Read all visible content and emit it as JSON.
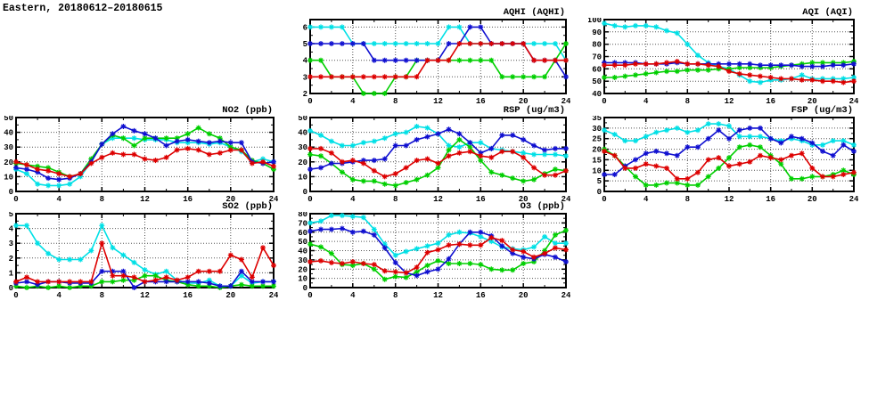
{
  "page_title": "Eastern, 20180612–20180615",
  "station": "Eastern",
  "date_range": "20180612–20180615",
  "chart_data": {
    "note": "7 hourly time-series panels, 4 unlabeled series per panel (colors cyan/green/blue/red), x = hour of day 0-24, markers = asterisks, dotted grid",
    "panels": "see charts"
  },
  "charts": [
    {
      "id": "aqhi",
      "title": "AQHI (AQHI)",
      "type": "line",
      "xlim": [
        0,
        24
      ],
      "xticks": [
        0,
        4,
        8,
        12,
        16,
        20,
        24
      ],
      "xminor": 2,
      "ylim": [
        2,
        6.45
      ],
      "yticks": [
        2,
        3,
        4,
        5,
        6
      ],
      "x_start": 0,
      "x_step": 1,
      "series": [
        {
          "name": "cyan",
          "color": "#00e0e6",
          "values": [
            6,
            6,
            6,
            6,
            5,
            5,
            5,
            5,
            5,
            5,
            5,
            5,
            5,
            6,
            6,
            5,
            5,
            5,
            5,
            5,
            5,
            5,
            5,
            5,
            4
          ]
        },
        {
          "name": "green",
          "color": "#00cf00",
          "values": [
            4,
            4,
            3,
            3,
            3,
            2,
            2,
            2,
            3,
            3,
            4,
            4,
            4,
            4,
            4,
            4,
            4,
            4,
            3,
            3,
            3,
            3,
            3,
            4,
            5
          ]
        },
        {
          "name": "blue",
          "color": "#0f0fd0",
          "values": [
            5,
            5,
            5,
            5,
            5,
            5,
            4,
            4,
            4,
            4,
            4,
            4,
            4,
            5,
            5,
            6,
            6,
            5,
            5,
            5,
            5,
            4,
            4,
            4,
            3
          ]
        },
        {
          "name": "red",
          "color": "#dd0000",
          "values": [
            3,
            3,
            3,
            3,
            3,
            3,
            3,
            3,
            3,
            3,
            3,
            4,
            4,
            4,
            5,
            5,
            5,
            5,
            5,
            5,
            5,
            4,
            4,
            4,
            4
          ]
        }
      ]
    },
    {
      "id": "aqi",
      "title": "AQI (AQI)",
      "type": "line",
      "xlim": [
        0,
        24
      ],
      "xticks": [
        0,
        4,
        8,
        12,
        16,
        20,
        24
      ],
      "xminor": 2,
      "ylim": [
        40,
        100
      ],
      "yticks": [
        40,
        50,
        60,
        70,
        80,
        90,
        100
      ],
      "x_start": 0,
      "x_step": 1,
      "series": [
        {
          "name": "cyan",
          "color": "#00e0e6",
          "values": [
            97,
            95,
            94,
            95,
            95,
            94,
            91,
            89,
            80,
            71,
            65,
            62,
            60,
            55,
            50,
            49,
            51,
            51,
            52,
            55,
            52,
            52,
            52,
            52,
            53
          ]
        },
        {
          "name": "green",
          "color": "#00cf00",
          "values": [
            53,
            53,
            54,
            55,
            56,
            57,
            58,
            58,
            59,
            59,
            59,
            60,
            60,
            61,
            61,
            61,
            61,
            62,
            63,
            64,
            65,
            65,
            65,
            65,
            66
          ]
        },
        {
          "name": "blue",
          "color": "#0f0fd0",
          "values": [
            65,
            65,
            65,
            65,
            64,
            64,
            64,
            65,
            64,
            64,
            64,
            64,
            64,
            64,
            64,
            63,
            63,
            63,
            63,
            62,
            62,
            62,
            63,
            63,
            64
          ]
        },
        {
          "name": "red",
          "color": "#dd0000",
          "values": [
            63,
            63,
            63,
            64,
            64,
            64,
            65,
            66,
            64,
            64,
            63,
            62,
            58,
            56,
            55,
            54,
            53,
            52,
            52,
            51,
            51,
            50,
            50,
            49,
            50
          ]
        }
      ]
    },
    {
      "id": "no2",
      "title": "NO2 (ppb)",
      "type": "line",
      "xlim": [
        0,
        24
      ],
      "xticks": [
        0,
        4,
        8,
        12,
        16,
        20,
        24
      ],
      "xminor": 2,
      "ylim": [
        0,
        50
      ],
      "yticks": [
        0,
        10,
        20,
        30,
        40,
        50
      ],
      "x_start": 0,
      "x_step": 1,
      "series": [
        {
          "name": "cyan",
          "color": "#00e0e6",
          "values": [
            15,
            12,
            5,
            4,
            4,
            5,
            10,
            20,
            32,
            36,
            36,
            36,
            35,
            35,
            35,
            33,
            33,
            33,
            32,
            33,
            30,
            27,
            20,
            22,
            20
          ]
        },
        {
          "name": "green",
          "color": "#00cf00",
          "values": [
            19,
            18,
            17,
            16,
            13,
            10,
            12,
            22,
            32,
            38,
            36,
            31,
            36,
            36,
            36,
            36,
            39,
            43,
            39,
            36,
            30,
            28,
            21,
            19,
            15
          ]
        },
        {
          "name": "blue",
          "color": "#0f0fd0",
          "values": [
            16,
            15,
            13,
            9,
            8,
            9,
            12,
            20,
            32,
            39,
            44,
            41,
            39,
            36,
            31,
            34,
            35,
            34,
            33,
            34,
            33,
            33,
            20,
            19,
            20
          ]
        },
        {
          "name": "red",
          "color": "#dd0000",
          "values": [
            20,
            18,
            15,
            14,
            12,
            10,
            12,
            19,
            23,
            26,
            25,
            25,
            22,
            21,
            23,
            28,
            29,
            28,
            25,
            26,
            28,
            28,
            19,
            20,
            17
          ]
        }
      ]
    },
    {
      "id": "rsp",
      "title": "RSP (ug/m3)",
      "type": "line",
      "xlim": [
        0,
        24
      ],
      "xticks": [
        0,
        4,
        8,
        12,
        16,
        20,
        24
      ],
      "xminor": 2,
      "ylim": [
        0,
        50
      ],
      "yticks": [
        0,
        10,
        20,
        30,
        40,
        50
      ],
      "x_start": 0,
      "x_step": 1,
      "series": [
        {
          "name": "cyan",
          "color": "#00e0e6",
          "values": [
            41,
            38,
            34,
            31,
            31,
            33,
            34,
            36,
            39,
            40,
            44,
            43,
            39,
            31,
            30,
            33,
            33,
            29,
            28,
            27,
            26,
            25,
            25,
            25,
            24
          ]
        },
        {
          "name": "green",
          "color": "#00cf00",
          "values": [
            25,
            24,
            19,
            13,
            8,
            7,
            7,
            5,
            4,
            6,
            8,
            11,
            16,
            28,
            35,
            30,
            21,
            13,
            11,
            9,
            7,
            8,
            12,
            15,
            14
          ]
        },
        {
          "name": "blue",
          "color": "#0f0fd0",
          "values": [
            15,
            16,
            19,
            19,
            20,
            21,
            21,
            22,
            31,
            31,
            35,
            37,
            39,
            42,
            39,
            33,
            26,
            29,
            38,
            38,
            35,
            31,
            28,
            29,
            29
          ]
        },
        {
          "name": "red",
          "color": "#dd0000",
          "values": [
            29,
            29,
            26,
            20,
            21,
            19,
            14,
            10,
            12,
            16,
            21,
            22,
            19,
            24,
            26,
            27,
            24,
            23,
            27,
            27,
            23,
            16,
            11,
            11,
            14
          ]
        }
      ]
    },
    {
      "id": "fsp",
      "title": "FSP (ug/m3)",
      "type": "line",
      "xlim": [
        0,
        24
      ],
      "xticks": [
        0,
        4,
        8,
        12,
        16,
        20,
        24
      ],
      "xminor": 2,
      "ylim": [
        0,
        35
      ],
      "yticks": [
        0,
        5,
        10,
        15,
        20,
        25,
        30,
        35
      ],
      "x_start": 0,
      "x_step": 1,
      "series": [
        {
          "name": "cyan",
          "color": "#00e0e6",
          "values": [
            29,
            27,
            24,
            24,
            26,
            28,
            29,
            30,
            28,
            29,
            32,
            32,
            31,
            26,
            26,
            26,
            25,
            24,
            25,
            24,
            22,
            22,
            24,
            24,
            22
          ]
        },
        {
          "name": "green",
          "color": "#00cf00",
          "values": [
            20,
            17,
            12,
            7,
            3,
            3,
            4,
            4,
            3,
            3,
            7,
            11,
            16,
            21,
            22,
            21,
            17,
            13,
            6,
            6,
            7,
            7,
            8,
            10,
            8
          ]
        },
        {
          "name": "blue",
          "color": "#0f0fd0",
          "values": [
            8,
            8,
            12,
            15,
            18,
            19,
            18,
            17,
            21,
            21,
            25,
            29,
            25,
            29,
            30,
            30,
            25,
            23,
            26,
            25,
            23,
            19,
            17,
            22,
            19
          ]
        },
        {
          "name": "red",
          "color": "#dd0000",
          "values": [
            19,
            17,
            11,
            11,
            13,
            12,
            11,
            6,
            6,
            9,
            15,
            16,
            12,
            13,
            14,
            17,
            16,
            15,
            17,
            18,
            11,
            7,
            7,
            8,
            9
          ]
        }
      ]
    },
    {
      "id": "so2",
      "title": "SO2 (ppb)",
      "type": "line",
      "xlim": [
        0,
        24
      ],
      "xticks": [
        0,
        4,
        8,
        12,
        16,
        20,
        24
      ],
      "xminor": 2,
      "ylim": [
        0,
        5
      ],
      "yticks": [
        0,
        1,
        2,
        3,
        4,
        5
      ],
      "x_start": 0,
      "x_step": 1,
      "series": [
        {
          "name": "cyan",
          "color": "#00e0e6",
          "values": [
            4.2,
            4.2,
            3.0,
            2.3,
            1.9,
            1.9,
            1.9,
            2.5,
            4.2,
            2.7,
            2.2,
            1.7,
            1.2,
            0.9,
            1.1,
            0.5,
            0.3,
            0.3,
            0.5,
            0.1,
            0.1,
            0.8,
            0.3,
            0.4,
            0.4
          ]
        },
        {
          "name": "green",
          "color": "#00cf00",
          "values": [
            0.1,
            0.0,
            0.1,
            0.0,
            0.1,
            0.0,
            0.1,
            0.1,
            0.4,
            0.4,
            0.5,
            0.5,
            0.8,
            0.8,
            0.5,
            0.4,
            0.2,
            0.1,
            0.1,
            0.0,
            0.1,
            0.2,
            0.1,
            0.1,
            0.1
          ]
        },
        {
          "name": "blue",
          "color": "#0f0fd0",
          "values": [
            0.3,
            0.4,
            0.2,
            0.4,
            0.4,
            0.3,
            0.3,
            0.3,
            1.1,
            1.1,
            1.1,
            0.0,
            0.4,
            0.4,
            0.4,
            0.4,
            0.4,
            0.4,
            0.3,
            0.1,
            0.1,
            1.1,
            0.4,
            0.4,
            0.4
          ]
        },
        {
          "name": "red",
          "color": "#dd0000",
          "values": [
            0.4,
            0.7,
            0.4,
            0.4,
            0.4,
            0.4,
            0.4,
            0.4,
            3.0,
            0.8,
            0.8,
            0.7,
            0.4,
            0.5,
            0.7,
            0.5,
            0.7,
            1.1,
            1.1,
            1.1,
            2.2,
            1.9,
            0.7,
            2.7,
            1.5
          ]
        }
      ]
    },
    {
      "id": "o3",
      "title": "O3 (ppb)",
      "type": "line",
      "xlim": [
        0,
        24
      ],
      "xticks": [
        0,
        4,
        8,
        12,
        16,
        20,
        24
      ],
      "xminor": 2,
      "ylim": [
        0,
        80
      ],
      "yticks": [
        0,
        10,
        20,
        30,
        40,
        50,
        60,
        70,
        80
      ],
      "x_start": 0,
      "x_step": 1,
      "series": [
        {
          "name": "cyan",
          "color": "#00e0e6",
          "values": [
            70,
            72,
            78,
            78,
            77,
            76,
            63,
            47,
            35,
            39,
            42,
            45,
            48,
            57,
            60,
            59,
            55,
            50,
            44,
            42,
            41,
            44,
            55,
            48,
            48
          ]
        },
        {
          "name": "green",
          "color": "#00cf00",
          "values": [
            47,
            44,
            37,
            25,
            24,
            26,
            20,
            9,
            12,
            11,
            17,
            24,
            29,
            26,
            26,
            26,
            25,
            20,
            19,
            19,
            26,
            28,
            40,
            57,
            62
          ]
        },
        {
          "name": "blue",
          "color": "#0f0fd0",
          "values": [
            61,
            63,
            63,
            64,
            60,
            61,
            57,
            43,
            27,
            16,
            13,
            17,
            20,
            31,
            47,
            60,
            60,
            56,
            45,
            37,
            33,
            31,
            36,
            33,
            28
          ]
        },
        {
          "name": "red",
          "color": "#dd0000",
          "values": [
            28,
            29,
            27,
            26,
            28,
            26,
            25,
            18,
            17,
            16,
            22,
            38,
            41,
            46,
            47,
            46,
            46,
            54,
            51,
            41,
            39,
            33,
            37,
            43,
            41
          ]
        }
      ]
    }
  ]
}
